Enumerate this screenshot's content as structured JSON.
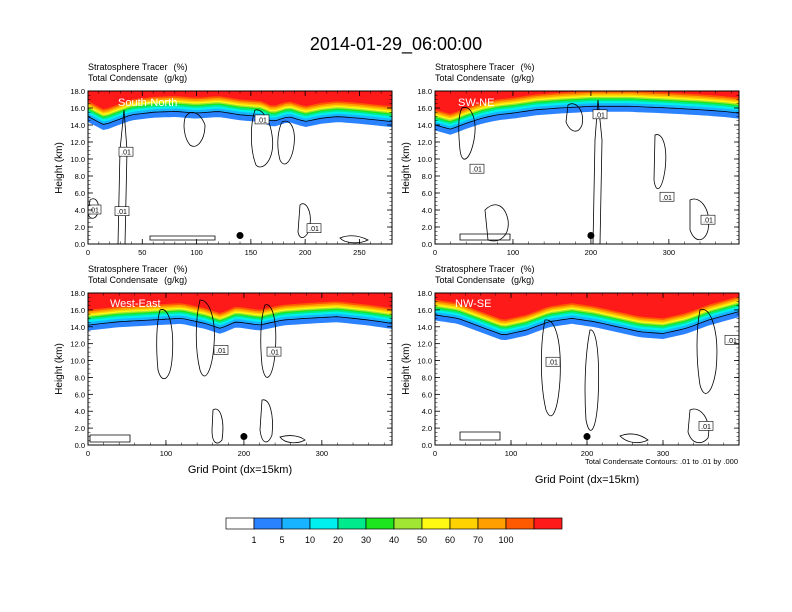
{
  "figure": {
    "title": "2014-01-29_06:00:00",
    "footnote": "Total Condensate Contours: .01 to .01 by .000"
  },
  "chart_data": [
    {
      "type": "heatmap",
      "label": "South-North",
      "title_line1": "Stratosphere Tracer",
      "title_unit1": "(%)",
      "title_line2": "Total Condensate",
      "title_unit2": "(g/kg)",
      "ylabel": "Height (km)",
      "xlabel": "",
      "xlim": [
        0,
        280
      ],
      "ylim": [
        0,
        18
      ],
      "xticks": [
        0,
        50,
        100,
        150,
        200,
        250
      ],
      "yticks": [
        0,
        2,
        4,
        6,
        8,
        10,
        12,
        14,
        16,
        18
      ],
      "tropopause": [
        [
          0,
          15.0
        ],
        [
          15,
          14.0
        ],
        [
          25,
          14.5
        ],
        [
          40,
          15.2
        ],
        [
          60,
          15.5
        ],
        [
          80,
          15.6
        ],
        [
          100,
          15.4
        ],
        [
          120,
          15.6
        ],
        [
          140,
          15.2
        ],
        [
          160,
          15.0
        ],
        [
          170,
          14.4
        ],
        [
          185,
          15.0
        ],
        [
          200,
          14.4
        ],
        [
          215,
          14.8
        ],
        [
          230,
          15.0
        ],
        [
          250,
          14.8
        ],
        [
          265,
          14.6
        ],
        [
          280,
          14.4
        ]
      ],
      "contour_labels": [
        {
          "x": 126,
          "y": 10.8,
          "text": ".01"
        },
        {
          "x": 262,
          "y": 14.6,
          "text": ".01"
        },
        {
          "x": 94,
          "y": 4.0,
          "text": ".01"
        },
        {
          "x": 122,
          "y": 3.8,
          "text": ".01"
        },
        {
          "x": 314,
          "y": 1.8,
          "text": ".01"
        }
      ],
      "marker": {
        "x": 140,
        "y": 1.0
      }
    },
    {
      "type": "heatmap",
      "label": "SW-NE",
      "title_line1": "Stratosphere Tracer",
      "title_unit1": "(%)",
      "title_line2": "Total Condensate",
      "title_unit2": "(g/kg)",
      "ylabel": "Height (km)",
      "xlabel": "",
      "xlim": [
        0,
        390
      ],
      "ylim": [
        0,
        18
      ],
      "xticks": [
        0,
        100,
        200,
        300
      ],
      "yticks": [
        0,
        2,
        4,
        6,
        8,
        10,
        12,
        14,
        16,
        18
      ],
      "tropopause": [
        [
          0,
          14.0
        ],
        [
          20,
          13.5
        ],
        [
          40,
          14.2
        ],
        [
          60,
          14.8
        ],
        [
          80,
          15.2
        ],
        [
          100,
          15.4
        ],
        [
          130,
          15.8
        ],
        [
          160,
          16.0
        ],
        [
          200,
          16.2
        ],
        [
          250,
          16.2
        ],
        [
          300,
          16.0
        ],
        [
          340,
          15.8
        ],
        [
          370,
          15.6
        ],
        [
          390,
          15.4
        ]
      ],
      "contour_labels": [
        {
          "x": 600,
          "y": 15.2,
          "text": ".01"
        },
        {
          "x": 477,
          "y": 8.8,
          "text": ".01"
        },
        {
          "x": 667,
          "y": 5.5,
          "text": ".01"
        },
        {
          "x": 708,
          "y": 2.8,
          "text": ".01"
        }
      ],
      "marker": {
        "x": 200,
        "y": 1.0
      }
    },
    {
      "type": "heatmap",
      "label": "West-East",
      "title_line1": "Stratosphere Tracer",
      "title_unit1": "(%)",
      "title_line2": "Total Condensate",
      "title_unit2": "(g/kg)",
      "ylabel": "Height (km)",
      "xlabel": "Grid Point (dx=15km)",
      "xlim": [
        0,
        390
      ],
      "ylim": [
        0,
        18
      ],
      "xticks": [
        0,
        100,
        200,
        300
      ],
      "yticks": [
        0,
        2,
        4,
        6,
        8,
        10,
        12,
        14,
        16,
        18
      ],
      "tropopause": [
        [
          0,
          14.2
        ],
        [
          40,
          14.6
        ],
        [
          80,
          14.8
        ],
        [
          120,
          15.0
        ],
        [
          150,
          14.4
        ],
        [
          170,
          13.8
        ],
        [
          190,
          14.6
        ],
        [
          220,
          14.2
        ],
        [
          250,
          14.8
        ],
        [
          280,
          15.0
        ],
        [
          320,
          15.2
        ],
        [
          360,
          14.8
        ],
        [
          390,
          14.4
        ]
      ],
      "contour_labels": [
        {
          "x": 221,
          "y": 11.2,
          "text": ".01"
        },
        {
          "x": 274,
          "y": 11.0,
          "text": ".01"
        }
      ],
      "marker": {
        "x": 200,
        "y": 1.0
      }
    },
    {
      "type": "heatmap",
      "label": "NW-SE",
      "title_line1": "Stratosphere Tracer",
      "title_unit1": "(%)",
      "title_line2": "Total Condensate",
      "title_unit2": "(g/kg)",
      "ylabel": "Height (km)",
      "xlabel": "Grid Point (dx=15km)",
      "xlim": [
        0,
        400
      ],
      "ylim": [
        0,
        18
      ],
      "xticks": [
        0,
        100,
        200,
        300
      ],
      "yticks": [
        0,
        2,
        4,
        6,
        8,
        10,
        12,
        14,
        16,
        18
      ],
      "tropopause": [
        [
          0,
          15.4
        ],
        [
          30,
          15.0
        ],
        [
          60,
          14.0
        ],
        [
          90,
          13.0
        ],
        [
          120,
          13.6
        ],
        [
          150,
          14.6
        ],
        [
          180,
          15.0
        ],
        [
          210,
          14.6
        ],
        [
          240,
          14.0
        ],
        [
          270,
          13.4
        ],
        [
          300,
          13.2
        ],
        [
          330,
          13.8
        ],
        [
          360,
          14.8
        ],
        [
          400,
          15.8
        ]
      ],
      "contour_labels": [
        {
          "x": 553,
          "y": 9.8,
          "text": ".01"
        },
        {
          "x": 732,
          "y": 12.4,
          "text": ".01"
        },
        {
          "x": 706,
          "y": 2.2,
          "text": ".01"
        }
      ],
      "marker": {
        "x": 200,
        "y": 1.0
      }
    }
  ],
  "colorbar": {
    "colors": [
      "#ffffff",
      "#2a82ff",
      "#18b4ff",
      "#00f0f0",
      "#00ec8c",
      "#1ee61e",
      "#a0e632",
      "#fffa14",
      "#ffd200",
      "#ffa000",
      "#ff5a00",
      "#ff1a1a"
    ],
    "labels": [
      "1",
      "5",
      "10",
      "20",
      "30",
      "40",
      "50",
      "60",
      "70",
      "100"
    ]
  }
}
